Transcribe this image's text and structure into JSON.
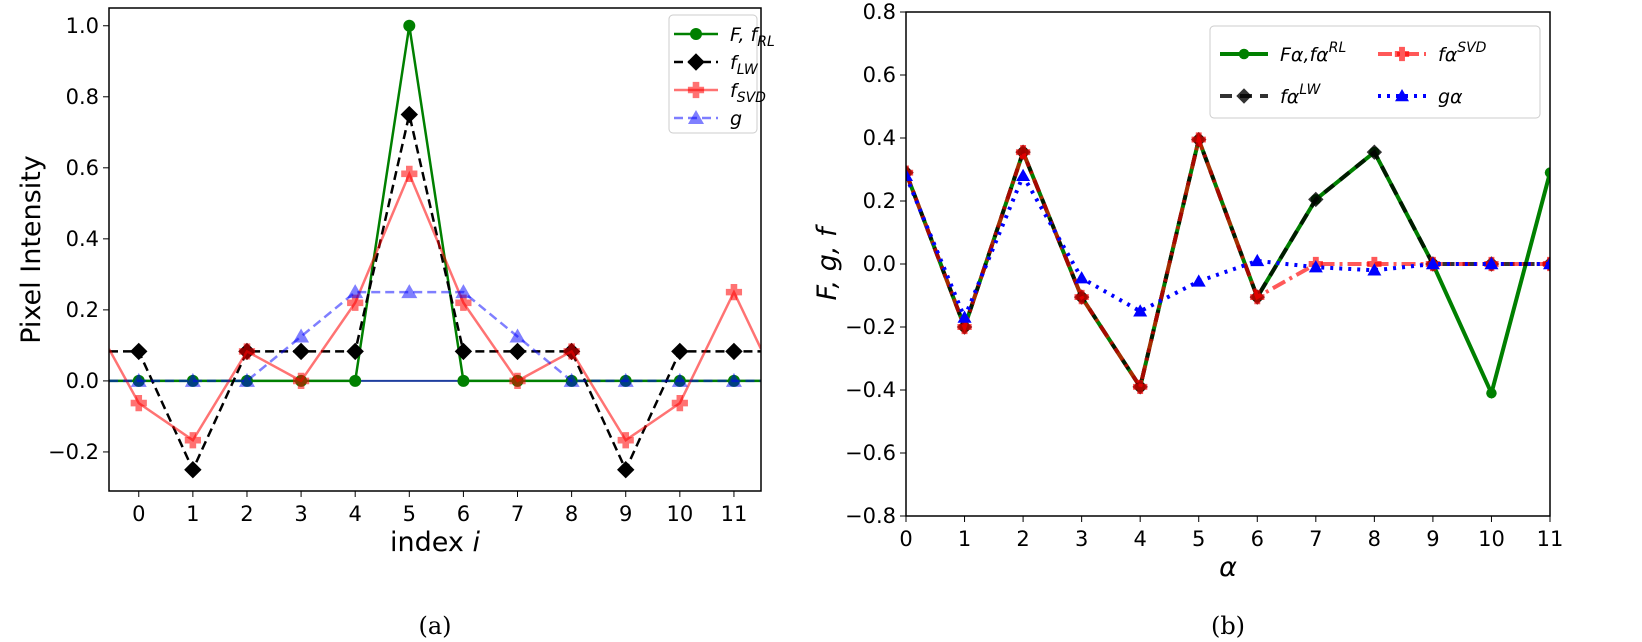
{
  "chart_data": [
    {
      "type": "line",
      "caption": "(a)",
      "xlabel": "index ",
      "xlabel_italic": "i",
      "ylabel": "Pixel Intensity",
      "xlim": [
        -0.55,
        11.5
      ],
      "ylim": [
        -0.31,
        1.05
      ],
      "xticks": [
        0,
        1,
        2,
        3,
        4,
        5,
        6,
        7,
        8,
        9,
        10,
        11
      ],
      "yticks": [
        -0.2,
        0.0,
        0.2,
        0.4,
        0.6,
        0.8,
        1.0
      ],
      "ytick_labels": [
        "−0.2",
        "0.0",
        "0.2",
        "0.4",
        "0.6",
        "0.8",
        "1.0"
      ],
      "legend_position": "top-right",
      "x": [
        0,
        1,
        2,
        3,
        4,
        5,
        6,
        7,
        8,
        9,
        10,
        11
      ],
      "series": [
        {
          "name": "F, f",
          "sub": "RL",
          "color": "#008000",
          "marker": "circle",
          "dash": "",
          "opacity": 1,
          "values": [
            0,
            0,
            0,
            0,
            0,
            1,
            0,
            0,
            0,
            0,
            0,
            0
          ],
          "edge": [
            0,
            0
          ]
        },
        {
          "name": "f",
          "sub": "LW",
          "color": "#000000",
          "marker": "diamond",
          "dash": "9,5",
          "opacity": 1,
          "values": [
            0.083,
            -0.25,
            0.083,
            0.083,
            0.083,
            0.75,
            0.083,
            0.083,
            0.083,
            -0.25,
            0.083,
            0.083
          ],
          "edge": [
            0.083,
            0.083
          ]
        },
        {
          "name": "f",
          "sub": "SVD",
          "color": "#ff0000",
          "marker": "plus",
          "dash": "",
          "opacity": 0.55,
          "values": [
            -0.0625,
            -0.167,
            0.083,
            0,
            0.22,
            0.583,
            0.22,
            0,
            0.083,
            -0.167,
            -0.0625,
            0.25
          ],
          "edge": [
            0.09,
            0.09
          ]
        },
        {
          "name": "g",
          "sub": "",
          "color": "#0000ff",
          "marker": "triangle",
          "dash": "9,5",
          "opacity": 0.5,
          "values": [
            0,
            0,
            0,
            0.125,
            0.25,
            0.25,
            0.25,
            0.125,
            0,
            0,
            0,
            0
          ],
          "edge": [
            0,
            0
          ]
        }
      ]
    },
    {
      "type": "line",
      "caption": "(b)",
      "xlabel": "",
      "xlabel_italic": "α",
      "ylabel": "F, g, f",
      "xlim": [
        0,
        11
      ],
      "ylim": [
        -0.8,
        0.8
      ],
      "xticks": [
        0,
        1,
        2,
        3,
        4,
        5,
        6,
        7,
        8,
        9,
        10,
        11
      ],
      "yticks": [
        -0.8,
        -0.6,
        -0.4,
        -0.2,
        0.0,
        0.2,
        0.4,
        0.6,
        0.8
      ],
      "ytick_labels": [
        "−0.8",
        "−0.6",
        "−0.4",
        "−0.2",
        "0.0",
        "0.2",
        "0.4",
        "0.6",
        "0.8"
      ],
      "legend_position": "top-right",
      "x": [
        0,
        1,
        2,
        3,
        4,
        5,
        6,
        7,
        8,
        9,
        10,
        11
      ],
      "series": [
        {
          "name": "Fα,fα",
          "sup": "RL",
          "color": "#008000",
          "marker": "circle",
          "dash": "",
          "opacity": 1,
          "values": [
            0.29,
            -0.2,
            0.355,
            -0.105,
            -0.39,
            0.395,
            -0.105,
            0.205,
            0.355,
            0,
            -0.41,
            0.29
          ]
        },
        {
          "name": "fα",
          "sup": "LW",
          "color": "#000000",
          "marker": "diamond",
          "dash": "12,8",
          "opacity": 0.8,
          "values": [
            0.29,
            -0.2,
            0.355,
            -0.105,
            -0.39,
            0.395,
            -0.105,
            0.205,
            0.355,
            0,
            0,
            0
          ]
        },
        {
          "name": "fα",
          "sup": "SVD",
          "color": "#ff0000",
          "marker": "plus",
          "dash": "14,5,3,5",
          "opacity": 0.65,
          "values": [
            0.29,
            -0.2,
            0.355,
            -0.105,
            -0.39,
            0.395,
            -0.105,
            0,
            0,
            0,
            0,
            0
          ]
        },
        {
          "name": "gα",
          "sup": "",
          "color": "#0000ff",
          "marker": "triangle",
          "dash": "3,6",
          "opacity": 1,
          "values": [
            0.28,
            -0.17,
            0.28,
            -0.045,
            -0.15,
            -0.055,
            0.01,
            -0.01,
            -0.02,
            0,
            0,
            0
          ]
        }
      ]
    }
  ]
}
